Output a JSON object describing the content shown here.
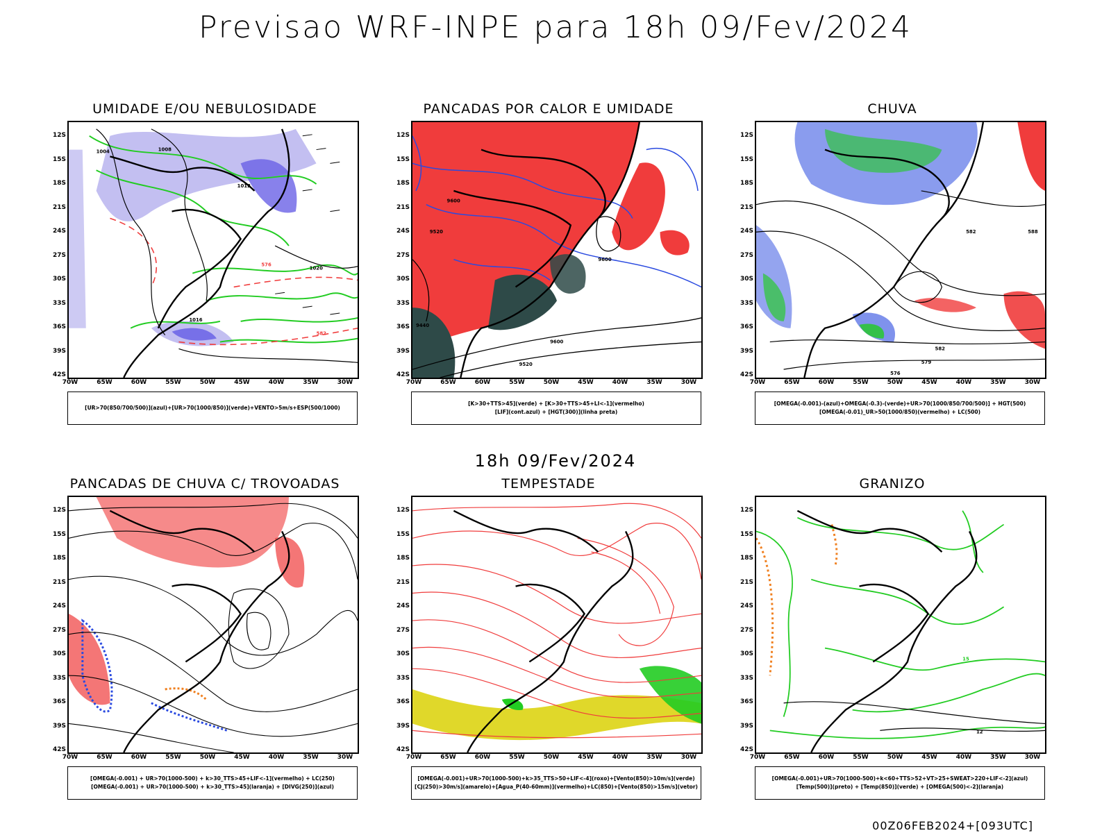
{
  "title": "Previsao WRF-INPE  para 18h 09/Fev/2024",
  "mid_date": "18h 09/Fev/2024",
  "footer": "00Z06FEB2024+[093UTC]",
  "lat_labels": [
    "12S",
    "15S",
    "18S",
    "21S",
    "24S",
    "27S",
    "30S",
    "33S",
    "36S",
    "39S",
    "42S"
  ],
  "lon_labels": [
    "70W",
    "65W",
    "60W",
    "55W",
    "50W",
    "45W",
    "40W",
    "35W",
    "30W"
  ],
  "colors": {
    "red": "#f03c3c",
    "green": "#22cc22",
    "blue": "#2a4ae0",
    "lavender": "#b8b4ee",
    "darkteal": "#2e4a48",
    "yellow": "#e0d82a",
    "orange": "#f08020"
  },
  "panels": [
    {
      "title": "UMIDADE E/OU NEBULOSIDADE",
      "caption": [
        "[UR>70(850/700/500)](azul)+[UR>70(1000/850)](verde)+VENTO>5m/s+ESP(500/1000)"
      ],
      "labels": [
        "1004",
        "1008",
        "1012",
        "1016",
        "1020",
        "576",
        "582"
      ]
    },
    {
      "title": "PANCADAS POR CALOR E UMIDADE",
      "caption": [
        "[K>30+TTS>45](verde) + [K>30+TTS>45+LI<-1](vermelho)",
        "[LIF](cont.azul) + [HGT(300)](linha preta)"
      ],
      "labels": [
        "9600",
        "9520",
        "9440"
      ]
    },
    {
      "title": "CHUVA",
      "caption": [
        "[OMEGA(-0.001)-(azul)+OMEGA(-0.3)-(verde)+UR>70(1000/850/700/500)] + HGT(500)",
        "[OMEGA(-0.01)_UR>50(1000/850)(vermelho) + LC(500)"
      ],
      "labels": [
        "582",
        "579",
        "576",
        "588"
      ]
    },
    {
      "title": "PANCADAS DE CHUVA C/ TROVOADAS",
      "caption": [
        "[OMEGA(-0.001) + UR>70(1000-500) + k>30_TTS>45+LIF<-1](vermelho) + LC(250)",
        "[OMEGA(-0.001) + UR>70(1000-500) + k>30_TTS>45](laranja) + [DIVG(250)](azul)"
      ],
      "labels": []
    },
    {
      "title": "TEMPESTADE",
      "caption": [
        "[OMEGA(-0.001)+UR>70(1000-500)+k>35_TTS>50+LIF<-4](roxo)+[Vento(850)>10m/s](verde)",
        "[CJ(250)>30m/s](amarelo)+[Agua_P(40-60mm)](vermelho)+LC(850)+[Vento(850)>15m/s](vetor)"
      ],
      "labels": []
    },
    {
      "title": "GRANIZO",
      "caption": [
        "[OMEGA(-0.001)+UR>70(1000-500)+k<60+TTS>52+VT>25+SWEAT>220+LIF<-2](azul)",
        "[Temp(500)](preto) + [Temp(850)](verde) + [OMEGA(500)<-2](laranja)"
      ],
      "labels": [
        "12",
        "15"
      ]
    }
  ]
}
